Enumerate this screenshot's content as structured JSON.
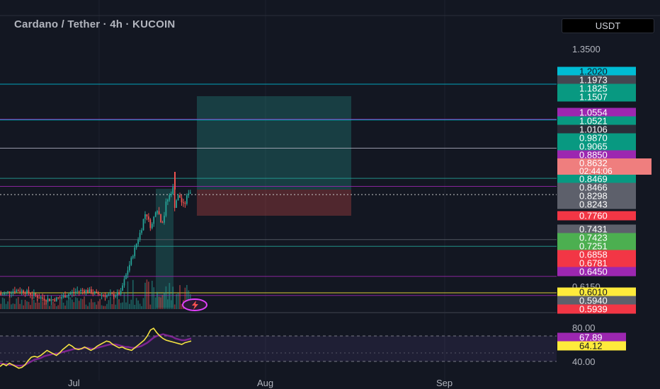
{
  "header": {
    "title": "Cardano / Tether · 4h · KUCOIN",
    "currency": "USDT"
  },
  "colors": {
    "background": "#131722",
    "candle_up": "#26a69a",
    "candle_down": "#ef5350",
    "rsi_line": "#f5e342",
    "rsi_ma": "#9c27b0",
    "target_zone": "#26a69a",
    "stop_zone": "#ef5350"
  },
  "chart_data": [
    {
      "type": "candlestick",
      "symbol": "Cardano / Tether",
      "interval": "4h",
      "exchange": "KUCOIN",
      "ylim": [
        0.585,
        1.4
      ],
      "x_ticks": [
        "Jul",
        "Aug",
        "Sep"
      ],
      "y_ticks": [
        "1.3500",
        "0.6150"
      ],
      "current_price": "0.8632",
      "countdown": "02:44:06",
      "price_labels": [
        {
          "value": 1.202,
          "text": "1.2020",
          "color": "#00bcd4",
          "text_color": "#131722"
        },
        {
          "value": 1.1973,
          "text": "1.1973",
          "color": "#434651",
          "text_color": "#ffffff"
        },
        {
          "value": 1.1825,
          "text": "1.1825",
          "color": "#089981",
          "text_color": "#ffffff"
        },
        {
          "value": 1.1507,
          "text": "1.1507",
          "color": "#089981",
          "text_color": "#ffffff"
        },
        {
          "value": 1.0554,
          "text": "1.0554",
          "color": "#9c27b0",
          "text_color": "#ffffff"
        },
        {
          "value": 1.0521,
          "text": "1.0521",
          "color": "#089981",
          "text_color": "#ffffff"
        },
        {
          "value": 1.0106,
          "text": "1.0106",
          "color": "#2a2e39",
          "text_color": "#ffffff"
        },
        {
          "value": 0.987,
          "text": "0.9870",
          "color": "#089981",
          "text_color": "#ffffff"
        },
        {
          "value": 0.9065,
          "text": "0.9065",
          "color": "#089981",
          "text_color": "#ffffff"
        },
        {
          "value": 0.885,
          "text": "0.8850",
          "color": "#9c27b0",
          "text_color": "#ffffff"
        },
        {
          "value": 0.8469,
          "text": "0.8469",
          "color": "#089981",
          "text_color": "#ffffff"
        },
        {
          "value": 0.8466,
          "text": "0.8466",
          "color": "#5d606b",
          "text_color": "#ffffff"
        },
        {
          "value": 0.8298,
          "text": "0.8298",
          "color": "#5d606b",
          "text_color": "#ffffff"
        },
        {
          "value": 0.8243,
          "text": "0.8243",
          "color": "#5d606b",
          "text_color": "#ffffff"
        },
        {
          "value": 0.776,
          "text": "0.7760",
          "color": "#f23645",
          "text_color": "#ffffff"
        },
        {
          "value": 0.7431,
          "text": "0.7431",
          "color": "#5d606b",
          "text_color": "#ffffff"
        },
        {
          "value": 0.7423,
          "text": "0.7423",
          "color": "#4caf50",
          "text_color": "#ffffff"
        },
        {
          "value": 0.7251,
          "text": "0.7251",
          "color": "#4caf50",
          "text_color": "#ffffff"
        },
        {
          "value": 0.6858,
          "text": "0.6858",
          "color": "#f23645",
          "text_color": "#ffffff"
        },
        {
          "value": 0.6781,
          "text": "0.6781",
          "color": "#f23645",
          "text_color": "#ffffff"
        },
        {
          "value": 0.645,
          "text": "0.6450",
          "color": "#9c27b0",
          "text_color": "#ffffff"
        },
        {
          "value": 0.601,
          "text": "0.6010",
          "color": "#ffeb3b",
          "text_color": "#131722"
        },
        {
          "value": 0.594,
          "text": "0.5940",
          "color": "#5d606b",
          "text_color": "#ffffff"
        },
        {
          "value": 0.5939,
          "text": "0.5939",
          "color": "#f23645",
          "text_color": "#ffffff"
        }
      ],
      "horizontal_lines": [
        {
          "value": 1.202,
          "color": "#00bcd4"
        },
        {
          "value": 1.0554,
          "color": "#9c27b0"
        },
        {
          "value": 1.0521,
          "color": "#00bcd4"
        },
        {
          "value": 0.987,
          "color": "#b0b0c0"
        },
        {
          "value": 0.9065,
          "color": "#26a69a"
        },
        {
          "value": 0.885,
          "color": "#9c27b0"
        },
        {
          "value": 0.7431,
          "color": "#5d606b"
        },
        {
          "value": 0.7251,
          "color": "#26a69a"
        },
        {
          "value": 0.645,
          "color": "#9c27b0"
        },
        {
          "value": 0.601,
          "color": "#ffeb3b"
        },
        {
          "value": 0.594,
          "color": "#9c27b0"
        }
      ],
      "position": {
        "type": "long",
        "entry": 0.8469,
        "target": 1.1507,
        "stop": 0.776
      }
    },
    {
      "type": "line",
      "indicator": "RSI",
      "ylim": [
        30,
        90
      ],
      "y_ticks": [
        "80.00",
        "40.00"
      ],
      "band": [
        40,
        70
      ],
      "last_values": [
        "67.89",
        "64.12"
      ],
      "rsi_values": [
        34,
        37,
        35,
        38,
        36,
        34,
        32,
        33,
        36,
        41,
        45,
        46,
        45,
        47,
        50,
        53,
        51,
        49,
        47,
        50,
        54,
        57,
        60,
        58,
        55,
        54,
        55,
        57,
        55,
        53,
        55,
        58,
        60,
        62,
        64,
        63,
        60,
        58,
        56,
        57,
        55,
        54,
        53,
        56,
        59,
        62,
        65,
        70,
        77,
        79,
        74,
        70,
        67,
        65,
        64,
        63,
        62,
        61,
        60,
        62,
        63,
        64
      ],
      "ma_values": [
        38,
        37,
        37,
        36,
        36,
        35,
        35,
        35,
        36,
        38,
        40,
        42,
        43,
        44,
        46,
        47,
        48,
        49,
        49,
        50,
        51,
        52,
        53,
        54,
        55,
        55,
        55,
        56,
        56,
        55,
        55,
        56,
        57,
        58,
        59,
        60,
        60,
        60,
        59,
        58,
        57,
        57,
        56,
        56,
        57,
        58,
        60,
        62,
        65,
        68,
        70,
        71,
        72,
        71,
        70,
        69,
        67,
        66,
        65,
        65,
        66,
        67
      ]
    }
  ]
}
